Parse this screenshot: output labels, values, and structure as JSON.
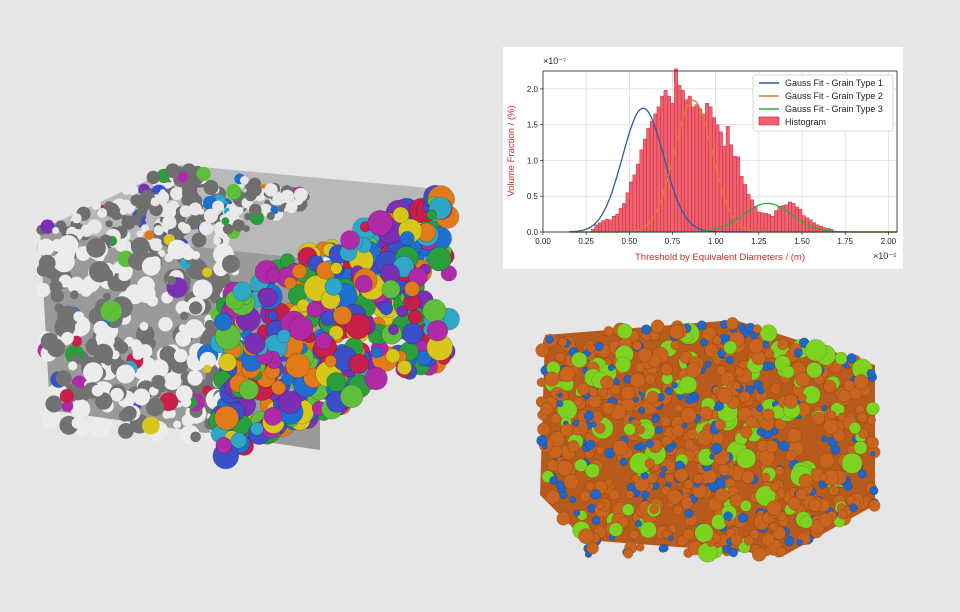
{
  "chart_data": {
    "type": "bar",
    "xlabel": "Threshold by Equivalent Diameters / (m)",
    "ylabel": "Volume Fraction / (%)",
    "x_multiplier": "×10⁻⁵",
    "y_multiplier": "×10⁻⁷",
    "xlim": [
      0,
      2.05
    ],
    "ylim": [
      0,
      2.25
    ],
    "x_ticks": [
      "0.00",
      "0.25",
      "0.50",
      "0.75",
      "1.00",
      "1.25",
      "1.50",
      "1.75",
      "2.00"
    ],
    "y_ticks": [
      "0.0",
      "0.5",
      "1.0",
      "1.5",
      "2.0"
    ],
    "grid": true,
    "legend_position": "top-right",
    "histogram": {
      "name": "Histogram",
      "color": "#f0606e",
      "bin_width": 0.02,
      "bin_start": 0.28,
      "values": [
        0.04,
        0.1,
        0.13,
        0.16,
        0.18,
        0.17,
        0.22,
        0.25,
        0.33,
        0.4,
        0.55,
        0.7,
        0.8,
        0.95,
        1.15,
        1.3,
        1.45,
        1.55,
        1.65,
        1.75,
        1.9,
        1.98,
        1.9,
        1.8,
        2.28,
        2.05,
        1.98,
        1.85,
        1.9,
        1.75,
        1.78,
        1.72,
        1.65,
        1.8,
        1.75,
        1.6,
        1.5,
        1.4,
        1.2,
        1.48,
        1.22,
        1.06,
        1.05,
        0.78,
        0.67,
        0.53,
        0.45,
        0.36,
        0.28,
        0.27,
        0.26,
        0.25,
        0.22,
        0.3,
        0.36,
        0.37,
        0.38,
        0.42,
        0.4,
        0.35,
        0.32,
        0.23,
        0.2,
        0.17,
        0.13,
        0.1,
        0.08,
        0.06,
        0.05,
        0.04
      ]
    },
    "series": [
      {
        "name": "Gauss Fit - Grain Type 1",
        "color": "#2b5c9f",
        "mean": 0.58,
        "sigma": 0.12,
        "peak": 1.73
      },
      {
        "name": "Gauss Fit - Grain Type 2",
        "color": "#e07b28",
        "mean": 0.87,
        "sigma": 0.11,
        "peak": 1.84
      },
      {
        "name": "Gauss Fit - Grain Type 3",
        "color": "#35a84a",
        "mean": 1.3,
        "sigma": 0.14,
        "peak": 0.4
      }
    ]
  },
  "renders": {
    "left_colors": [
      "#7a2fb5",
      "#2fa8c8",
      "#d8c61a",
      "#c81e4a",
      "#2a9e3c",
      "#3a4fc8",
      "#e07a1a",
      "#b02aa8",
      "#5fbf3a",
      "#1f6fd0"
    ],
    "right_colors": {
      "type1": "#1e66c8",
      "type2": "#c8641e",
      "type3": "#7ed321"
    }
  }
}
